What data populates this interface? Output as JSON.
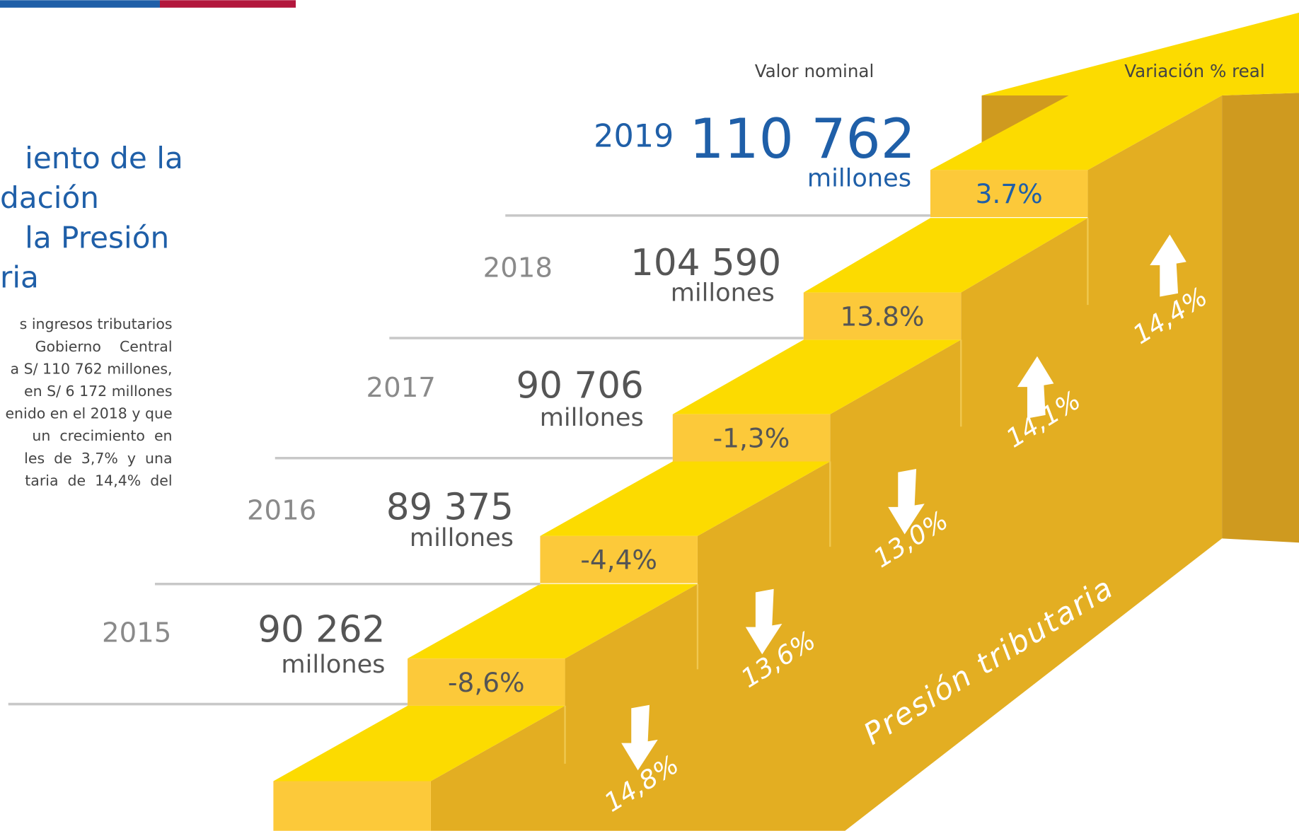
{
  "title_lines": [
    "iento de la",
    "dación",
    "la Presión",
    "ria"
  ],
  "paragraph_lines": [
    "s ingresos tributarios",
    "Gobierno    Central",
    "a S/ 110 762 millones,",
    "en S/ 6 172 millones",
    "enido en el 2018 y que",
    "un  crecimiento  en",
    "les  de  3,7%  y  una",
    "taria  de  14,4%  del"
  ],
  "column_headers": {
    "nominal": "Valor nominal",
    "real": "Variación % real"
  },
  "years": [
    {
      "year": "2015",
      "value": "90 262",
      "unit": "millones",
      "variation": "-8,6%",
      "pressure": "14,8%"
    },
    {
      "year": "2016",
      "value": "89 375",
      "unit": "millones",
      "variation": "-4,4%",
      "pressure": "13,6%"
    },
    {
      "year": "2017",
      "value": "90 706",
      "unit": "millones",
      "variation": "-1,3%",
      "pressure": "13,0%"
    },
    {
      "year": "2018",
      "value": "104 590",
      "unit": "millones",
      "variation": "13.8%",
      "pressure": "14,1%"
    },
    {
      "year": "2019",
      "value": "110 762",
      "unit": "millones",
      "variation": "3.7%",
      "pressure": "14,4%"
    }
  ],
  "pressure_label": "Presión tributaria"
}
